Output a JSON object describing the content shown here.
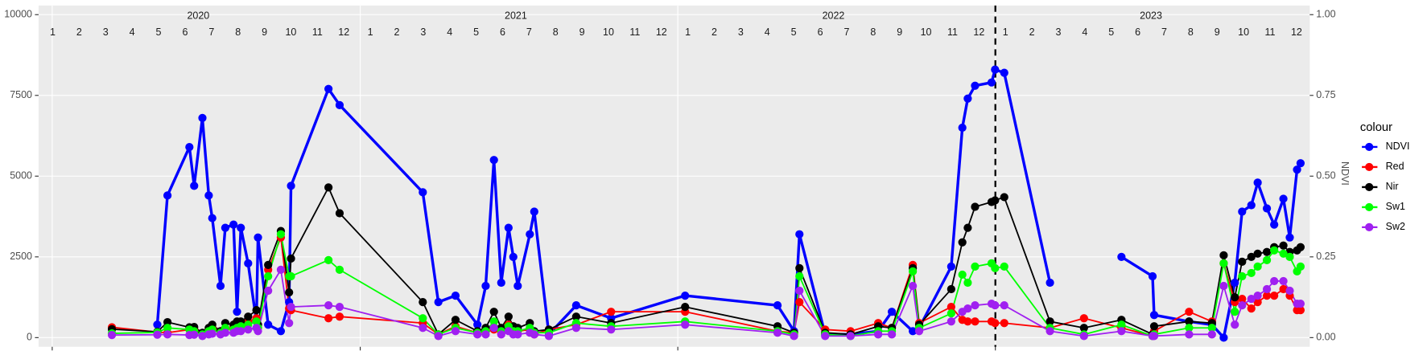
{
  "chart_data": {
    "type": "line",
    "x": [
      2020.228,
      2020.371,
      2020.403,
      2020.472,
      2020.487,
      2020.513,
      2020.533,
      2020.544,
      2020.57,
      2020.585,
      2020.611,
      2020.622,
      2020.634,
      2020.657,
      2020.683,
      2020.688,
      2020.72,
      2020.76,
      2020.786,
      2020.792,
      2020.91,
      2020.945,
      2021.207,
      2021.256,
      2021.31,
      2021.379,
      2021.405,
      2021.431,
      2021.454,
      2021.477,
      2021.492,
      2021.506,
      2021.544,
      2021.558,
      2021.604,
      2021.69,
      2021.8,
      2022.033,
      2022.324,
      2022.376,
      2022.393,
      2022.474,
      2022.554,
      2022.641,
      2022.684,
      2022.75,
      2022.77,
      2022.871,
      2022.906,
      2022.923,
      2022.946,
      2022.998,
      2023.009,
      2023.038,
      2023.182,
      2023.289,
      2023.407,
      2023.505,
      2023.51,
      2023.62,
      2023.692,
      2023.729,
      2023.764,
      2023.787,
      2023.816,
      2023.836,
      2023.865,
      2023.888,
      2023.917,
      2023.937,
      2023.96,
      2023.971
    ],
    "xlim": [
      2020,
      2024
    ],
    "xticks": [
      2020.04,
      2021.01,
      2022.01,
      2023.01
    ],
    "vline": 2023.01,
    "strip": {
      "years": [
        "2020",
        "2021",
        "2022",
        "2023"
      ],
      "months": [
        "1",
        "2",
        "3",
        "4",
        "5",
        "6",
        "7",
        "8",
        "9",
        "10",
        "11",
        "12"
      ]
    },
    "ylim": [
      -284,
      10284
    ],
    "yticks": [
      0,
      2500,
      5000,
      7500,
      10000
    ],
    "y2lim": [
      -0.0284,
      1.0284
    ],
    "y2ticks": [
      {
        "value": 0,
        "label": "0.00"
      },
      {
        "value": 0.25,
        "label": "0.25"
      },
      {
        "value": 0.5,
        "label": "0.50"
      },
      {
        "value": 0.75,
        "label": "0.75"
      },
      {
        "value": 1,
        "label": "1.00"
      }
    ],
    "y2label": "NDVI",
    "grid": true,
    "legend": "right",
    "legend_title": "colour",
    "series": [
      {
        "name": "NDVI",
        "color": "#0000ff",
        "axis": "y2",
        "values": [
          null,
          0.04,
          0.44,
          0.59,
          0.47,
          0.68,
          0.44,
          0.37,
          0.16,
          0.34,
          0.35,
          0.08,
          0.34,
          0.23,
          0.05,
          0.31,
          0.04,
          0.02,
          0.11,
          0.47,
          0.77,
          0.72,
          0.45,
          0.11,
          0.13,
          0.04,
          0.16,
          0.55,
          0.17,
          0.34,
          0.25,
          0.16,
          0.32,
          0.39,
          0.01,
          0.1,
          0.06,
          0.13,
          0.1,
          0.02,
          0.32,
          0.01,
          0.01,
          0.02,
          0.08,
          0.02,
          0.03,
          0.22,
          0.65,
          0.74,
          0.78,
          0.79,
          0.83,
          0.82,
          0.17,
          null,
          0.25,
          0.19,
          0.07,
          0.05,
          0.04,
          0.0,
          0.17,
          0.39,
          0.41,
          0.48,
          0.4,
          0.35,
          0.43,
          0.31,
          0.52,
          0.54
        ]
      },
      {
        "name": "Red",
        "color": "#ff0000",
        "values": [
          320,
          170,
          150,
          250,
          260,
          100,
          250,
          300,
          200,
          280,
          300,
          400,
          350,
          500,
          600,
          300,
          2100,
          3100,
          900,
          850,
          600,
          650,
          450,
          100,
          350,
          150,
          200,
          250,
          150,
          400,
          200,
          200,
          250,
          100,
          250,
          400,
          800,
          800,
          200,
          150,
          1100,
          250,
          200,
          450,
          300,
          2250,
          450,
          950,
          550,
          500,
          500,
          500,
          450,
          450,
          300,
          600,
          300,
          50,
          200,
          800,
          500,
          2300,
          1100,
          1200,
          900,
          1100,
          1300,
          1300,
          1500,
          1300,
          850,
          850
        ]
      },
      {
        "name": "Nir",
        "color": "#000000",
        "values": [
          260,
          180,
          480,
          320,
          330,
          150,
          300,
          400,
          200,
          450,
          400,
          500,
          500,
          650,
          850,
          400,
          2250,
          3300,
          1400,
          2450,
          4650,
          3850,
          1100,
          100,
          550,
          200,
          300,
          800,
          300,
          650,
          350,
          300,
          450,
          200,
          250,
          650,
          450,
          950,
          350,
          150,
          2150,
          150,
          100,
          350,
          300,
          2150,
          400,
          1500,
          2950,
          3400,
          4050,
          4200,
          4250,
          4350,
          500,
          300,
          550,
          100,
          350,
          500,
          450,
          2550,
          1250,
          2350,
          2500,
          2600,
          2650,
          2800,
          2850,
          2650,
          2700,
          2800
        ]
      },
      {
        "name": "Sw1",
        "color": "#00ff00",
        "values": [
          130,
          160,
          300,
          250,
          200,
          100,
          200,
          250,
          150,
          300,
          250,
          300,
          350,
          400,
          500,
          300,
          1900,
          3200,
          1900,
          1900,
          2400,
          2100,
          600,
          100,
          300,
          150,
          200,
          500,
          200,
          350,
          200,
          200,
          300,
          150,
          150,
          450,
          350,
          500,
          200,
          100,
          1900,
          100,
          50,
          200,
          200,
          2050,
          300,
          750,
          1950,
          1700,
          2200,
          2300,
          2150,
          2200,
          300,
          100,
          400,
          50,
          100,
          300,
          300,
          2300,
          800,
          1900,
          2000,
          2200,
          2400,
          2700,
          2600,
          2500,
          2050,
          2200
        ]
      },
      {
        "name": "Sw2",
        "color": "#a020f0",
        "values": [
          80,
          90,
          100,
          80,
          90,
          50,
          100,
          120,
          100,
          150,
          150,
          200,
          200,
          250,
          300,
          200,
          1450,
          2100,
          450,
          950,
          1000,
          950,
          300,
          50,
          200,
          100,
          100,
          300,
          100,
          200,
          100,
          100,
          150,
          100,
          50,
          300,
          250,
          400,
          150,
          50,
          1450,
          50,
          50,
          100,
          100,
          1600,
          200,
          500,
          800,
          900,
          1000,
          1050,
          1000,
          1000,
          200,
          50,
          200,
          50,
          50,
          100,
          100,
          1600,
          400,
          1000,
          1200,
          1300,
          1500,
          1750,
          1750,
          1450,
          1050,
          1050
        ]
      }
    ]
  }
}
